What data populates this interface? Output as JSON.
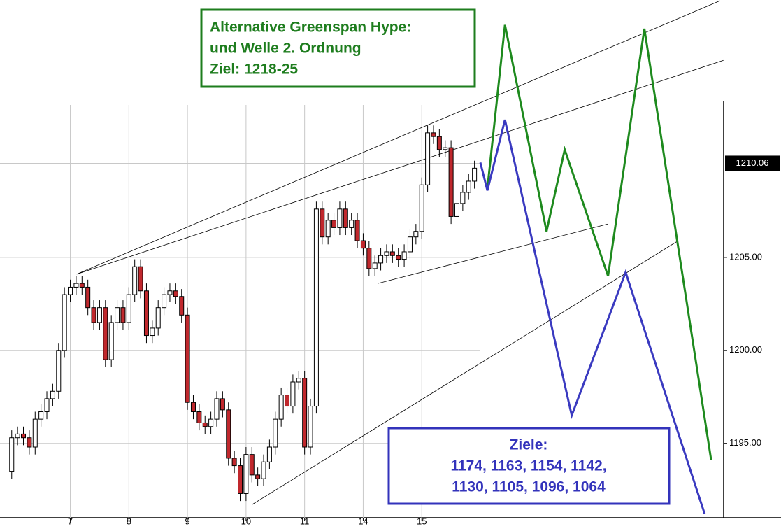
{
  "chart_data": {
    "type": "candlestick",
    "x": [
      2,
      3,
      4,
      5,
      6,
      7,
      8,
      9,
      10,
      11,
      12,
      13,
      14,
      15,
      16,
      17,
      18,
      19,
      20,
      21,
      22,
      23,
      24,
      25,
      26,
      27,
      28,
      29,
      30,
      31,
      32,
      33,
      34,
      35,
      36,
      37,
      38,
      39,
      40,
      41,
      42,
      43,
      44,
      45,
      46,
      47,
      48,
      49,
      50,
      51,
      52,
      53,
      54,
      55,
      56,
      57,
      58,
      59,
      60,
      61,
      62,
      63,
      64,
      65,
      66,
      67,
      68,
      69,
      70,
      71,
      72,
      73,
      74,
      75,
      76,
      77,
      78,
      79,
      80,
      81
    ],
    "open": [
      1193.5,
      1195.3,
      1195.5,
      1195.3,
      1194.8,
      1196.3,
      1196.7,
      1197.4,
      1197.8,
      1200.0,
      1203.0,
      1203.4,
      1203.6,
      1203.4,
      1202.3,
      1201.5,
      1202.3,
      1199.5,
      1201.5,
      1202.3,
      1201.5,
      1203.0,
      1204.5,
      1203.2,
      1200.8,
      1201.2,
      1202.3,
      1203.0,
      1203.2,
      1202.9,
      1201.9,
      1197.2,
      1196.7,
      1196.1,
      1195.9,
      1196.3,
      1197.4,
      1196.8,
      1194.2,
      1193.8,
      1192.3,
      1194.4,
      1193.3,
      1193.1,
      1194.0,
      1194.8,
      1196.3,
      1197.6,
      1197.0,
      1198.3,
      1198.5,
      1194.8,
      1197.0,
      1207.6,
      1206.1,
      1207.0,
      1206.6,
      1207.6,
      1206.6,
      1207.0,
      1205.9,
      1205.5,
      1204.4,
      1204.7,
      1205.1,
      1205.3,
      1205.1,
      1204.9,
      1205.3,
      1206.1,
      1206.4,
      1208.9,
      1211.7,
      1211.5,
      1210.8,
      1210.9,
      1207.2,
      1207.9,
      1208.5,
      1209.1
    ],
    "high": [
      1195.7,
      1195.9,
      1195.9,
      1195.7,
      1196.7,
      1197.1,
      1197.8,
      1198.2,
      1200.4,
      1203.4,
      1203.8,
      1204.0,
      1204.0,
      1203.8,
      1202.7,
      1202.7,
      1202.7,
      1201.9,
      1202.7,
      1202.7,
      1203.4,
      1204.9,
      1204.9,
      1203.6,
      1201.6,
      1202.7,
      1203.4,
      1203.6,
      1203.6,
      1203.3,
      1202.3,
      1197.6,
      1197.1,
      1196.5,
      1196.7,
      1197.8,
      1197.8,
      1197.2,
      1194.6,
      1194.2,
      1194.8,
      1194.8,
      1193.7,
      1194.4,
      1195.2,
      1196.7,
      1198.0,
      1198.0,
      1198.7,
      1198.9,
      1198.9,
      1197.4,
      1208.0,
      1208.0,
      1207.4,
      1207.4,
      1208.0,
      1208.0,
      1207.4,
      1207.4,
      1206.3,
      1205.9,
      1205.1,
      1205.5,
      1205.7,
      1205.7,
      1205.5,
      1205.7,
      1206.5,
      1206.8,
      1209.3,
      1212.1,
      1212.1,
      1211.9,
      1211.3,
      1211.3,
      1208.3,
      1208.9,
      1209.5,
      1210.2
    ],
    "low": [
      1193.1,
      1194.9,
      1194.9,
      1194.4,
      1194.4,
      1195.9,
      1196.3,
      1197.0,
      1197.4,
      1199.6,
      1202.6,
      1203.0,
      1203.0,
      1201.9,
      1201.1,
      1201.1,
      1199.1,
      1199.1,
      1201.1,
      1201.1,
      1201.1,
      1202.6,
      1202.8,
      1200.4,
      1200.4,
      1200.8,
      1201.9,
      1202.6,
      1202.5,
      1201.5,
      1196.8,
      1196.3,
      1195.7,
      1195.5,
      1195.5,
      1195.9,
      1196.4,
      1193.8,
      1193.4,
      1191.9,
      1191.9,
      1192.9,
      1192.7,
      1192.7,
      1193.6,
      1194.4,
      1195.9,
      1196.6,
      1196.6,
      1197.9,
      1194.4,
      1194.4,
      1196.6,
      1205.7,
      1205.7,
      1206.2,
      1206.2,
      1206.2,
      1206.2,
      1205.5,
      1205.1,
      1204.0,
      1204.0,
      1204.3,
      1204.7,
      1204.7,
      1204.5,
      1204.5,
      1204.9,
      1205.7,
      1206.0,
      1208.5,
      1211.1,
      1210.4,
      1210.4,
      1206.8,
      1206.8,
      1207.5,
      1208.1,
      1208.7
    ],
    "close": [
      1195.3,
      1195.5,
      1195.3,
      1194.8,
      1196.3,
      1196.7,
      1197.4,
      1197.8,
      1200.0,
      1203.0,
      1203.4,
      1203.6,
      1203.4,
      1202.3,
      1201.5,
      1202.3,
      1199.5,
      1201.5,
      1202.3,
      1201.5,
      1203.0,
      1204.5,
      1203.2,
      1200.8,
      1201.2,
      1202.3,
      1203.0,
      1203.2,
      1202.9,
      1201.9,
      1197.2,
      1196.7,
      1196.1,
      1195.9,
      1196.3,
      1197.4,
      1196.8,
      1194.2,
      1193.8,
      1192.3,
      1194.4,
      1193.3,
      1193.1,
      1194.0,
      1194.8,
      1196.3,
      1197.6,
      1197.0,
      1198.3,
      1198.5,
      1194.8,
      1197.0,
      1207.6,
      1206.1,
      1207.0,
      1206.6,
      1207.6,
      1206.6,
      1207.0,
      1205.9,
      1205.5,
      1204.4,
      1204.7,
      1205.1,
      1205.3,
      1205.1,
      1204.9,
      1205.3,
      1206.1,
      1206.4,
      1208.9,
      1211.7,
      1211.5,
      1210.8,
      1210.9,
      1207.2,
      1207.9,
      1208.5,
      1209.1,
      1209.8
    ],
    "up_color": "#ffffff",
    "down_color": "#c0282d",
    "xlim": [
      0,
      82
    ],
    "ylim": [
      1191.0,
      1213.2
    ],
    "xticks": [
      {
        "value": 12,
        "label": "7"
      },
      {
        "value": 22,
        "label": "8"
      },
      {
        "value": 32,
        "label": "9"
      },
      {
        "value": 42,
        "label": "10"
      },
      {
        "value": 52,
        "label": "11"
      },
      {
        "value": 62,
        "label": "14"
      },
      {
        "value": 72,
        "label": "15"
      }
    ],
    "yticks": [
      {
        "value": 1195,
        "label": "1195.00"
      },
      {
        "value": 1200,
        "label": "1200.00"
      },
      {
        "value": 1205,
        "label": "1205.00"
      }
    ],
    "last_price": 1210.06,
    "grid": true,
    "trendlines": [
      {
        "x": [
          13.1,
          122.9
        ],
        "y": [
          1204.1,
          1218.8
        ]
      },
      {
        "x": [
          13.1,
          123.5
        ],
        "y": [
          1204.1,
          1215.6
        ]
      },
      {
        "x": [
          64.5,
          103.8
        ],
        "y": [
          1203.6,
          1206.8
        ]
      },
      {
        "x": [
          43.0,
          115.8
        ],
        "y": [
          1191.7,
          1205.9
        ]
      }
    ],
    "projections": [
      {
        "color": "#1e8a1e",
        "x": [
          83.2,
          86.2,
          93.3,
          96.4,
          103.8,
          110.0,
          121.4
        ],
        "y": [
          1208.7,
          1217.5,
          1206.4,
          1210.8,
          1204.0,
          1217.3,
          1194.1
        ]
      },
      {
        "color": "#3a3ac0",
        "x": [
          82.0,
          83.2,
          86.2,
          97.6,
          106.8,
          120.3
        ],
        "y": [
          1210.1,
          1208.6,
          1212.4,
          1196.5,
          1204.2,
          1191.2
        ]
      }
    ],
    "annotations": [
      {
        "color": "#1e7d1e",
        "lines": [
          "Alternative Greenspan Hype:",
          "und Welle 2. Ordnung",
          "Ziel: 1218-25"
        ]
      },
      {
        "color": "#3333bb",
        "lines": [
          "Ziele:",
          "1174, 1163, 1154, 1142,",
          "1130, 1105, 1096, 1064"
        ]
      }
    ]
  }
}
